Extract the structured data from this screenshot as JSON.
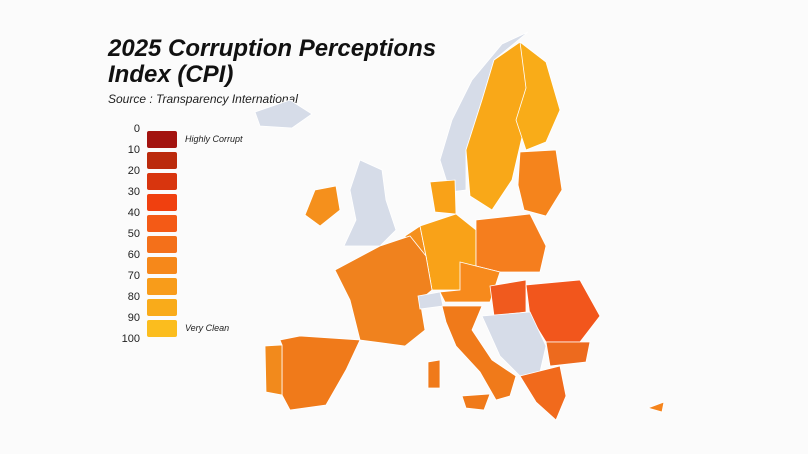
{
  "title_lines": [
    "2025 Corruption Perceptions",
    "Index (CPI)"
  ],
  "source": "Source : Transparency International",
  "legend": {
    "ticks": [
      0,
      10,
      20,
      30,
      40,
      50,
      60,
      70,
      80,
      90,
      100
    ],
    "colors": [
      "#a3130f",
      "#bb2a0c",
      "#d8350e",
      "#f0400f",
      "#f45a16",
      "#f4701a",
      "#f6881a",
      "#f89c1a",
      "#f9ab1a",
      "#fbbd1e"
    ],
    "low_label": "Highly Corrupt",
    "high_label": "Very Clean"
  }
}
